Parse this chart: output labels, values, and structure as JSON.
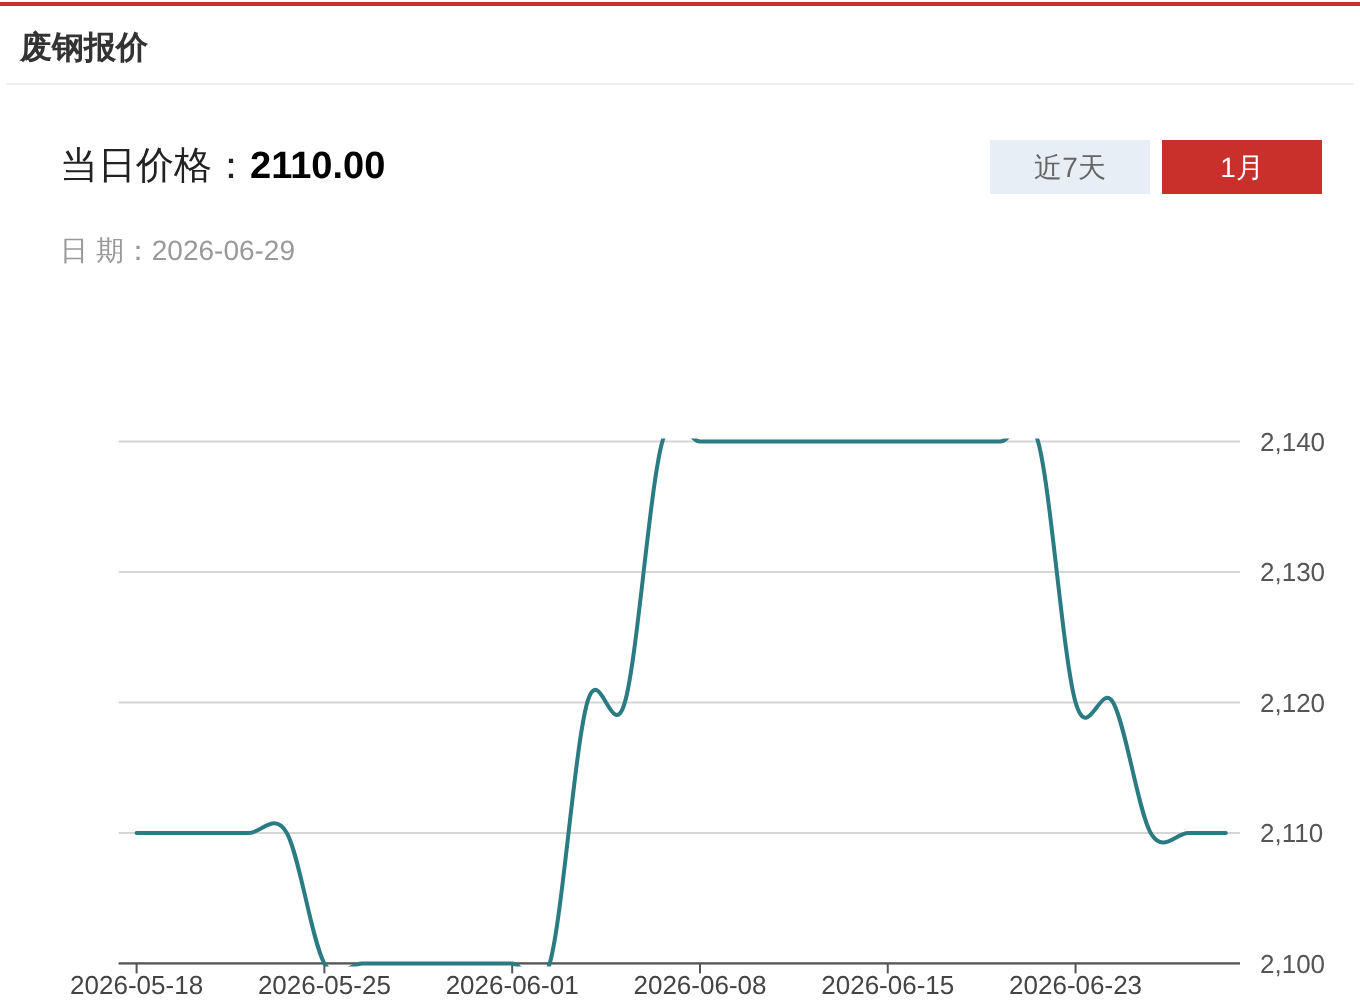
{
  "chart_data": {
    "type": "line",
    "title": "废钢报价",
    "annotations": [
      "当日价格：",
      "2110.00",
      "日 期：2026-06-29",
      "近7天",
      "1月"
    ],
    "categories": [
      "2026-05-18",
      null,
      null,
      null,
      null,
      "2026-05-25",
      null,
      null,
      null,
      null,
      "2026-06-01",
      null,
      null,
      null,
      null,
      "2026-06-08",
      null,
      null,
      null,
      null,
      "2026-06-15",
      null,
      null,
      null,
      null,
      "2026-06-23",
      null,
      null,
      null,
      null
    ],
    "values": [
      2110,
      2110,
      2110,
      2110,
      2110,
      2100,
      2100,
      2100,
      2100,
      2100,
      2100,
      2100,
      2120,
      2120,
      2140,
      2140,
      2140,
      2140,
      2140,
      2140,
      2140,
      2140,
      2140,
      2140,
      2140,
      2120,
      2120,
      2110,
      2110,
      2110
    ],
    "color": "#2a7b82",
    "ylim": [
      2100,
      2140
    ],
    "yticks": [
      {
        "value": 2100,
        "label": "2,100"
      },
      {
        "value": 2110,
        "label": "2,110"
      },
      {
        "value": 2120,
        "label": "2,120"
      },
      {
        "value": 2130,
        "label": "2,130"
      },
      {
        "value": 2140,
        "label": "2,140"
      }
    ],
    "grid": "y"
  }
}
